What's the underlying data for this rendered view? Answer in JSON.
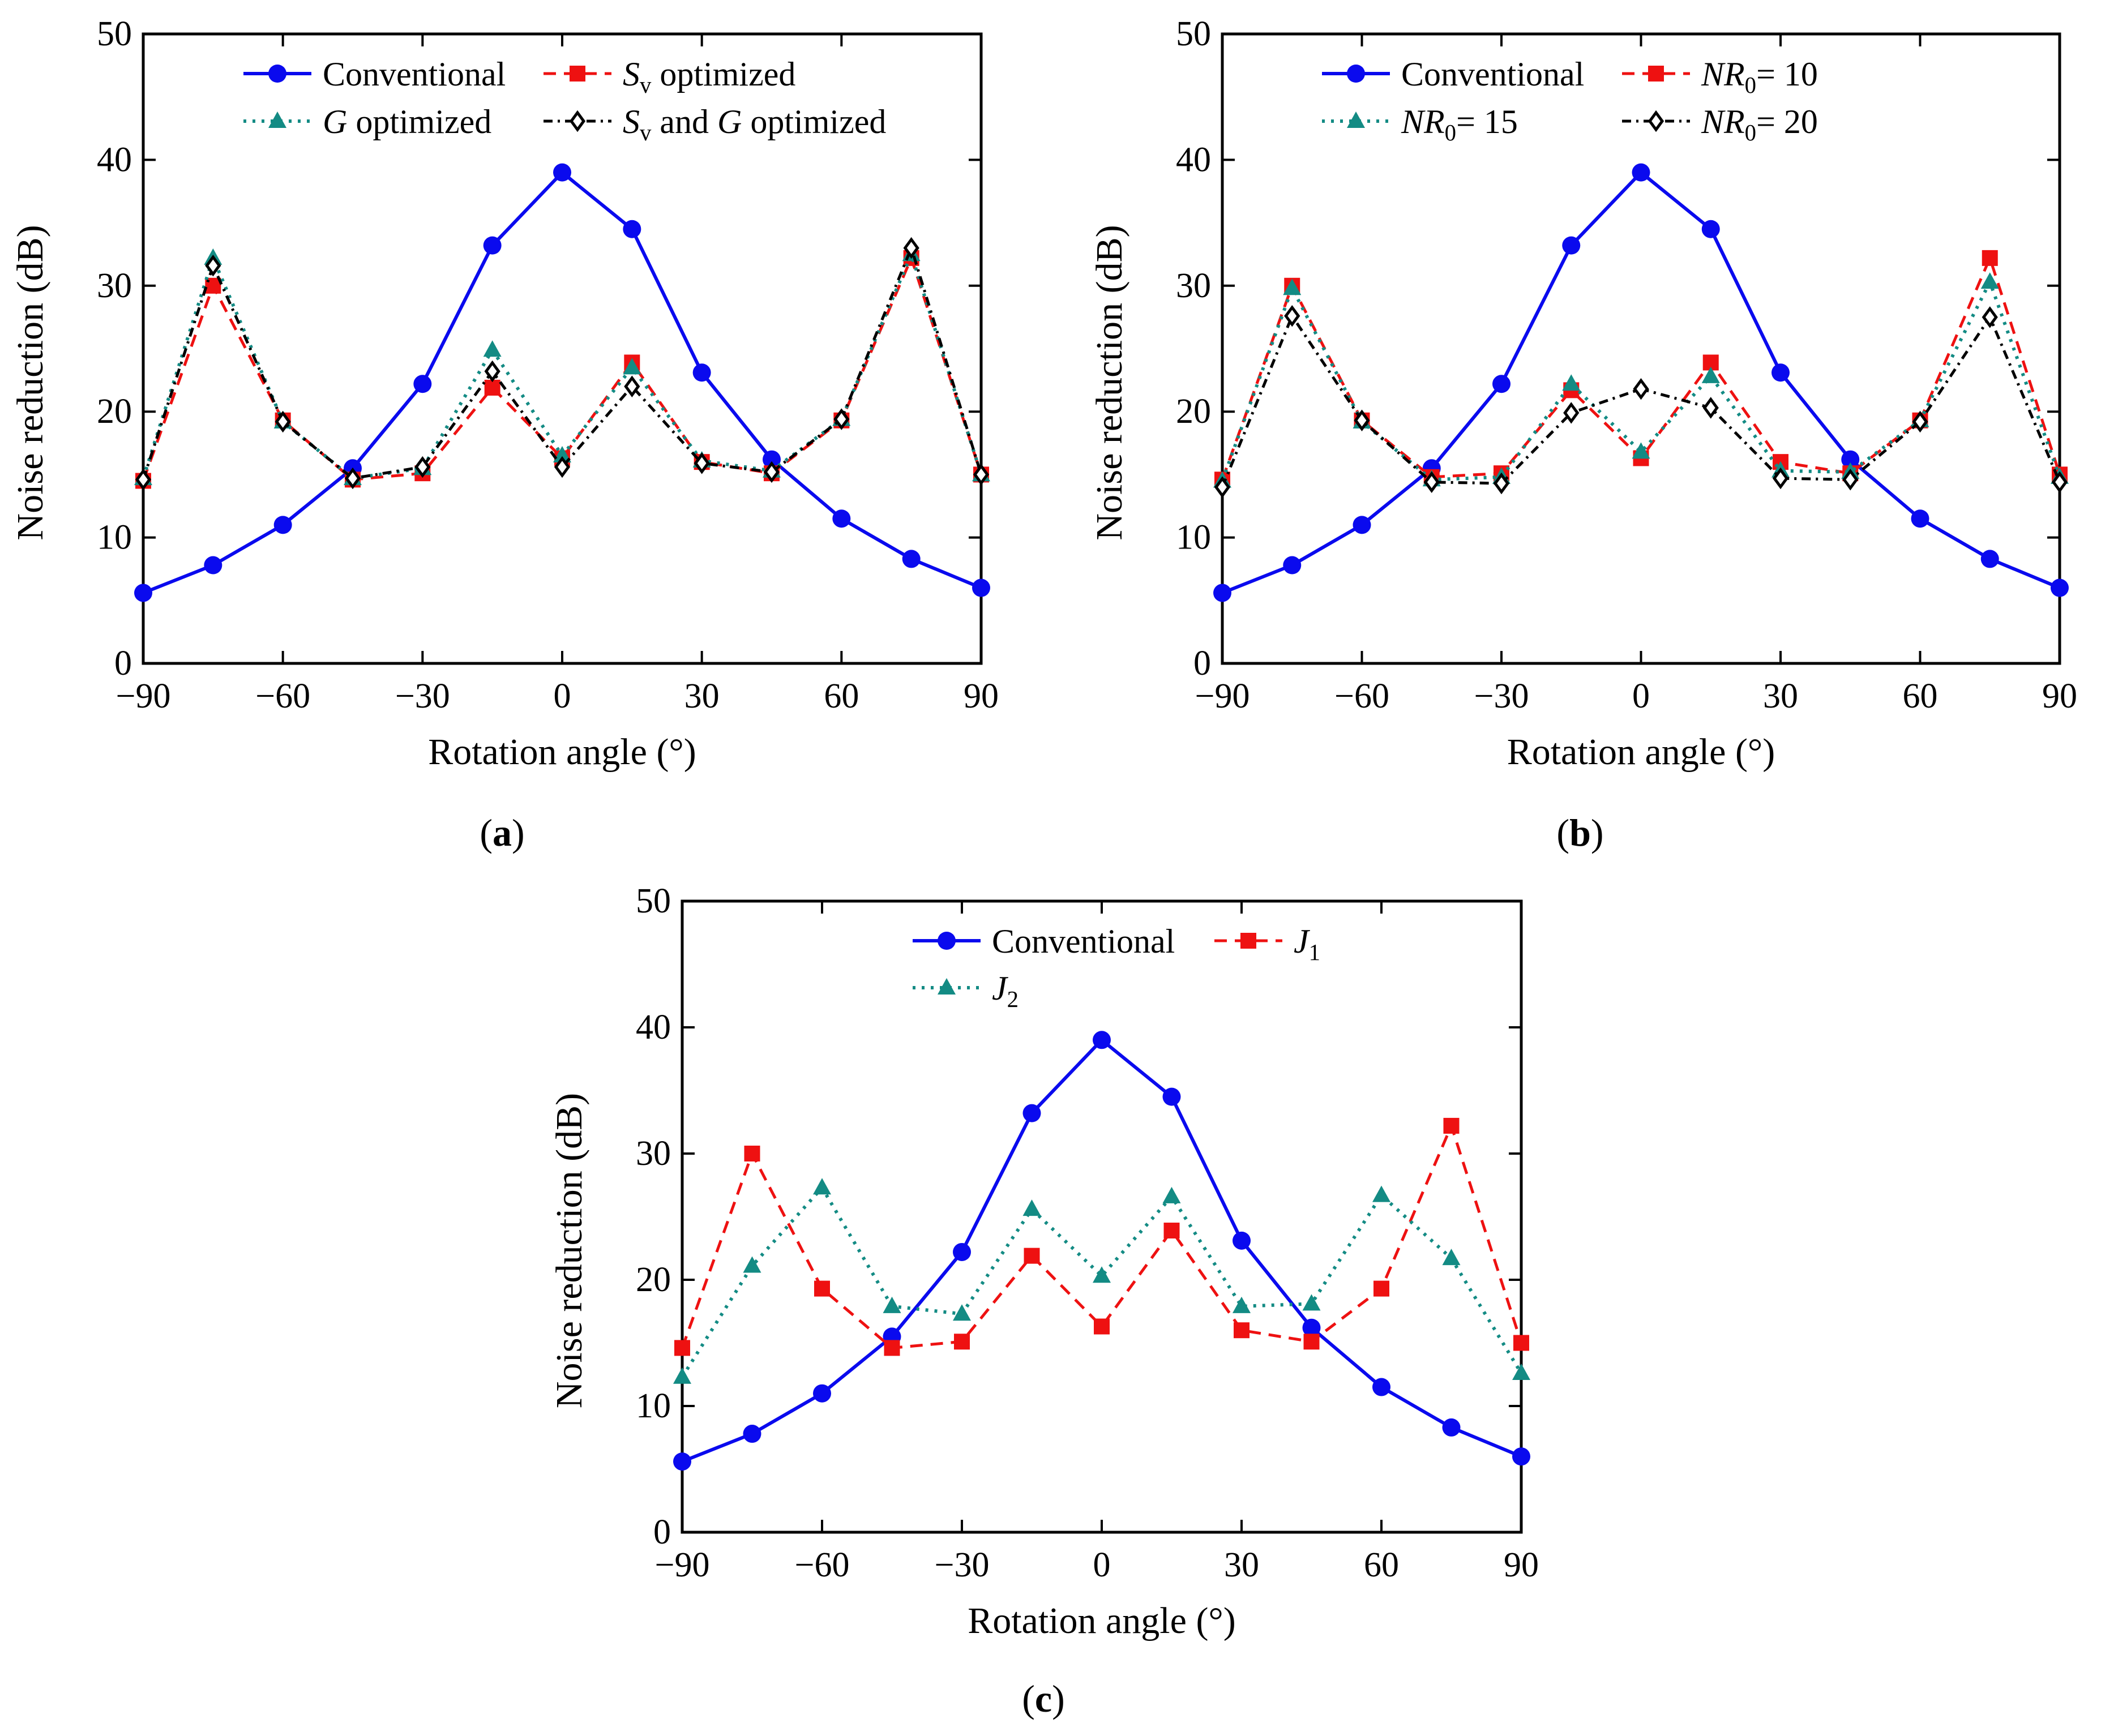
{
  "colors": {
    "conventional": "#0a0aee",
    "red": "#ee1111",
    "teal": "#138b84",
    "black": "#000000"
  },
  "panels": [
    {
      "label": "a"
    },
    {
      "label": "b"
    },
    {
      "label": "c"
    }
  ],
  "chart_data": [
    {
      "type": "line",
      "panel": "a",
      "xlabel": "Rotation angle (°)",
      "ylabel": "Noise reduction (dB)",
      "xlim": [
        -90,
        90
      ],
      "ylim": [
        0,
        50
      ],
      "xticks": [
        -90,
        -60,
        -30,
        0,
        30,
        60,
        90
      ],
      "xtick_labels": [
        "−90",
        "−60",
        "−30",
        "0",
        "30",
        "60",
        "90"
      ],
      "yticks": [
        0,
        10,
        20,
        30,
        40,
        50
      ],
      "legend_position": "top",
      "legend_columns": 2,
      "x": [
        -90,
        -75,
        -60,
        -45,
        -30,
        -15,
        0,
        15,
        30,
        45,
        60,
        75,
        90
      ],
      "series": [
        {
          "name": "Conventional",
          "style": "conventional",
          "values": [
            5.6,
            7.8,
            11.0,
            15.5,
            22.2,
            33.2,
            39.0,
            34.5,
            23.1,
            16.2,
            11.5,
            8.3,
            6.0
          ]
        },
        {
          "name": "S_v optimized",
          "legend_parts": [
            [
              "S",
              "italic"
            ],
            [
              "v",
              "sub"
            ],
            [
              " optimized",
              ""
            ]
          ],
          "style": "red",
          "values": [
            14.5,
            30.0,
            19.3,
            14.6,
            15.1,
            21.9,
            16.3,
            23.9,
            16.0,
            15.1,
            19.3,
            32.2,
            15.0
          ]
        },
        {
          "name": "G optimized",
          "legend_parts": [
            [
              "G",
              "italic"
            ],
            [
              " optimized",
              ""
            ]
          ],
          "style": "teal",
          "values": [
            14.7,
            32.2,
            19.2,
            14.7,
            15.5,
            24.9,
            16.5,
            23.5,
            16.1,
            15.3,
            19.4,
            32.5,
            15.0
          ]
        },
        {
          "name": "S_v and G optimized",
          "legend_parts": [
            [
              "S",
              "italic"
            ],
            [
              "v",
              "sub"
            ],
            [
              " and ",
              ""
            ],
            [
              "G",
              "italic"
            ],
            [
              " optimized",
              ""
            ]
          ],
          "style": "black",
          "values": [
            14.6,
            31.6,
            19.2,
            14.7,
            15.6,
            23.2,
            15.6,
            22.0,
            15.9,
            15.2,
            19.4,
            33.0,
            15.0
          ]
        }
      ]
    },
    {
      "type": "line",
      "panel": "b",
      "xlabel": "Rotation angle (°)",
      "ylabel": "Noise reduction (dB)",
      "xlim": [
        -90,
        90
      ],
      "ylim": [
        0,
        50
      ],
      "xticks": [
        -90,
        -60,
        -30,
        0,
        30,
        60,
        90
      ],
      "xtick_labels": [
        "−90",
        "−60",
        "−30",
        "0",
        "30",
        "60",
        "90"
      ],
      "yticks": [
        0,
        10,
        20,
        30,
        40,
        50
      ],
      "legend_position": "top",
      "legend_columns": 2,
      "x": [
        -90,
        -75,
        -60,
        -45,
        -30,
        -15,
        0,
        15,
        30,
        45,
        60,
        75,
        90
      ],
      "series": [
        {
          "name": "Conventional",
          "style": "conventional",
          "values": [
            5.6,
            7.8,
            11.0,
            15.5,
            22.2,
            33.2,
            39.0,
            34.5,
            23.1,
            16.2,
            11.5,
            8.3,
            6.0
          ]
        },
        {
          "name": "NR_0= 10",
          "legend_parts": [
            [
              "NR",
              "italic"
            ],
            [
              "0",
              "sub"
            ],
            [
              "= 10",
              ""
            ]
          ],
          "style": "red",
          "values": [
            14.6,
            30.0,
            19.3,
            14.8,
            15.1,
            21.7,
            16.3,
            23.9,
            16.0,
            15.1,
            19.3,
            32.2,
            15.0
          ]
        },
        {
          "name": "NR_0= 15",
          "legend_parts": [
            [
              "NR",
              "italic"
            ],
            [
              "0",
              "sub"
            ],
            [
              "= 15",
              ""
            ]
          ],
          "style": "teal",
          "values": [
            14.5,
            29.8,
            19.2,
            14.6,
            14.8,
            22.2,
            16.8,
            22.8,
            15.3,
            15.2,
            19.3,
            30.3,
            14.8
          ]
        },
        {
          "name": "NR_0= 20",
          "legend_parts": [
            [
              "NR",
              "italic"
            ],
            [
              "0",
              "sub"
            ],
            [
              "= 20",
              ""
            ]
          ],
          "style": "black",
          "values": [
            14.0,
            27.6,
            19.3,
            14.4,
            14.3,
            19.9,
            21.8,
            20.3,
            14.7,
            14.6,
            19.2,
            27.5,
            14.4
          ]
        }
      ]
    },
    {
      "type": "line",
      "panel": "c",
      "xlabel": "Rotation angle (°)",
      "ylabel": "Noise reduction (dB)",
      "xlim": [
        -90,
        90
      ],
      "ylim": [
        0,
        50
      ],
      "xticks": [
        -90,
        -60,
        -30,
        0,
        30,
        60,
        90
      ],
      "xtick_labels": [
        "−90",
        "−60",
        "−30",
        "0",
        "30",
        "60",
        "90"
      ],
      "yticks": [
        0,
        10,
        20,
        30,
        40,
        50
      ],
      "legend_position": "top",
      "legend_columns": 2,
      "x": [
        -90,
        -75,
        -60,
        -45,
        -30,
        -15,
        0,
        15,
        30,
        45,
        60,
        75,
        90
      ],
      "series": [
        {
          "name": "Conventional",
          "style": "conventional",
          "values": [
            5.6,
            7.8,
            11.0,
            15.5,
            22.2,
            33.2,
            39.0,
            34.5,
            23.1,
            16.2,
            11.5,
            8.3,
            6.0
          ]
        },
        {
          "name": "J_1",
          "legend_parts": [
            [
              "J",
              "italic"
            ],
            [
              "1",
              "sub"
            ]
          ],
          "style": "red",
          "values": [
            14.6,
            30.0,
            19.3,
            14.6,
            15.1,
            21.9,
            16.3,
            23.9,
            16.0,
            15.1,
            19.3,
            32.2,
            15.0
          ]
        },
        {
          "name": "J_2",
          "legend_parts": [
            [
              "J",
              "italic"
            ],
            [
              "2",
              "sub"
            ]
          ],
          "style": "teal",
          "values": [
            12.3,
            21.1,
            27.3,
            17.9,
            17.3,
            25.6,
            20.3,
            26.6,
            17.9,
            18.1,
            26.7,
            21.7,
            12.6
          ]
        }
      ]
    }
  ]
}
